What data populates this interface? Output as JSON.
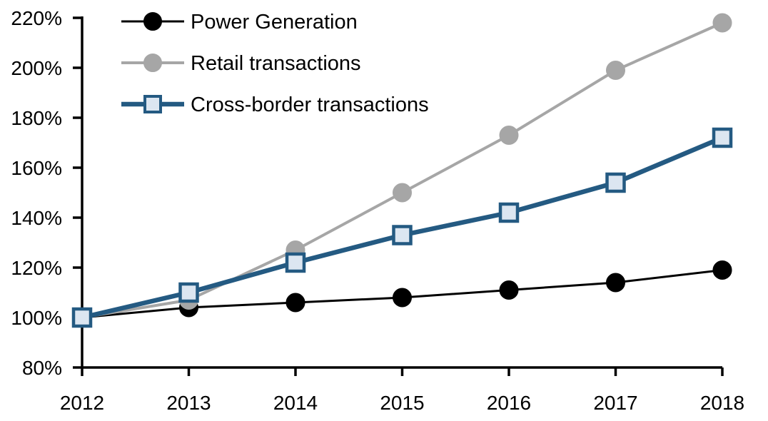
{
  "chart_data": {
    "type": "line",
    "title": "",
    "background": "#FFFFFF",
    "axis_color": "#000000",
    "grid": false,
    "legend_position": "top-left-inside",
    "x_labels": [
      "2012",
      "2013",
      "2014",
      "2015",
      "2016",
      "2017",
      "2018"
    ],
    "y_axis": {
      "min": 80,
      "max": 220,
      "step": 20,
      "tick_suffix": "%",
      "labels": [
        "80%",
        "100%",
        "120%",
        "140%",
        "160%",
        "180%",
        "200%",
        "220%"
      ]
    },
    "unit": "percent, indexed 2012 = 100%",
    "series": [
      {
        "name": "Power Generation",
        "color": "#000000",
        "marker": "circle",
        "marker_fill": "#000000",
        "marker_stroke": "#000000",
        "line_width": 3,
        "values": [
          100,
          104,
          106,
          108,
          111,
          114,
          119
        ]
      },
      {
        "name": "Retail transactions",
        "color": "#A6A6A6",
        "marker": "circle",
        "marker_fill": "#A6A6A6",
        "marker_stroke": "#A6A6A6",
        "line_width": 4,
        "values": [
          100,
          107,
          127,
          150,
          173,
          199,
          218
        ]
      },
      {
        "name": "Cross-border transactions",
        "color": "#245A82",
        "marker": "square",
        "marker_fill": "#DCE6F1",
        "marker_stroke": "#245A82",
        "line_width": 6.5,
        "values": [
          100,
          110,
          122,
          133,
          142,
          154,
          172
        ]
      }
    ]
  }
}
